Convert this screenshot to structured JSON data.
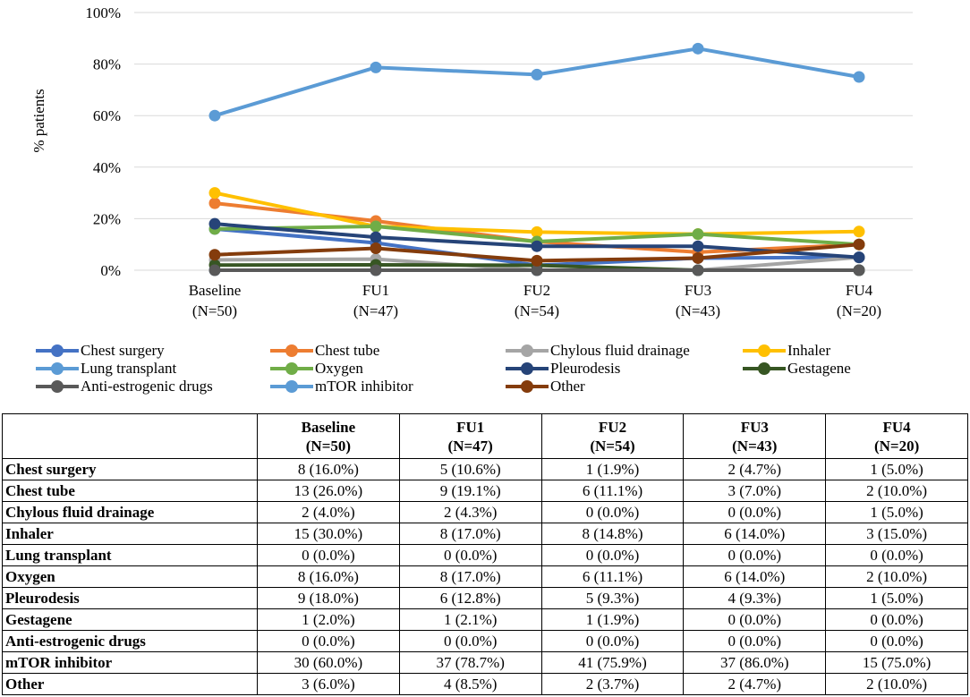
{
  "chart_data": {
    "type": "line",
    "title": "",
    "xlabel": "",
    "ylabel": "% patients",
    "ylim": [
      0,
      100
    ],
    "yticks": [
      0,
      20,
      40,
      60,
      80,
      100
    ],
    "ytick_labels": [
      "0%",
      "20%",
      "40%",
      "60%",
      "80%",
      "100%"
    ],
    "grid": true,
    "legend_position": "bottom",
    "categories": [
      {
        "name": "Baseline",
        "n": "(N=50)"
      },
      {
        "name": "FU1",
        "n": "(N=47)"
      },
      {
        "name": "FU2",
        "n": "(N=54)"
      },
      {
        "name": "FU3",
        "n": "(N=43)"
      },
      {
        "name": "FU4",
        "n": "(N=20)"
      }
    ],
    "series": [
      {
        "name": "Chest surgery",
        "color": "#4472C4",
        "values": [
          16.0,
          10.6,
          1.9,
          4.7,
          5.0
        ]
      },
      {
        "name": "Chest tube",
        "color": "#ED7D31",
        "values": [
          26.0,
          19.1,
          11.1,
          7.0,
          10.0
        ]
      },
      {
        "name": "Chylous fluid drainage",
        "color": "#A5A5A5",
        "values": [
          4.0,
          4.3,
          0.0,
          0.0,
          5.0
        ]
      },
      {
        "name": "Inhaler",
        "color": "#FFC000",
        "values": [
          30.0,
          17.0,
          14.8,
          14.0,
          15.0
        ]
      },
      {
        "name": "Lung transplant",
        "color": "#5B9BD5",
        "values": [
          0.0,
          0.0,
          0.0,
          0.0,
          0.0
        ]
      },
      {
        "name": "Oxygen",
        "color": "#70AD47",
        "values": [
          16.0,
          17.0,
          11.1,
          14.0,
          10.0
        ]
      },
      {
        "name": "Pleurodesis",
        "color": "#264478",
        "values": [
          18.0,
          12.8,
          9.3,
          9.3,
          5.0
        ]
      },
      {
        "name": "Gestagene",
        "color": "#375623",
        "values": [
          2.0,
          2.1,
          1.9,
          0.0,
          0.0
        ]
      },
      {
        "name": "Anti-estrogenic drugs",
        "color": "#595959",
        "values": [
          0.0,
          0.0,
          0.0,
          0.0,
          0.0
        ]
      },
      {
        "name": "mTOR inhibitor",
        "color": "#5B9BD5",
        "values": [
          60.0,
          78.7,
          75.9,
          86.0,
          75.0
        ]
      },
      {
        "name": "Other",
        "color": "#843C0C",
        "values": [
          6.0,
          8.5,
          3.7,
          4.7,
          10.0
        ]
      }
    ]
  },
  "table": {
    "headers": [
      {
        "name": "Baseline",
        "n": "(N=50)"
      },
      {
        "name": "FU1",
        "n": "(N=47)"
      },
      {
        "name": "FU2",
        "n": "(N=54)"
      },
      {
        "name": "FU3",
        "n": "(N=43)"
      },
      {
        "name": "FU4",
        "n": "(N=20)"
      }
    ],
    "rows": [
      {
        "label": "Chest surgery",
        "cells": [
          "8 (16.0%)",
          "5 (10.6%)",
          "1 (1.9%)",
          "2 (4.7%)",
          "1 (5.0%)"
        ]
      },
      {
        "label": "Chest tube",
        "cells": [
          "13 (26.0%)",
          "9 (19.1%)",
          "6 (11.1%)",
          "3 (7.0%)",
          "2 (10.0%)"
        ]
      },
      {
        "label": "Chylous fluid drainage",
        "cells": [
          "2 (4.0%)",
          "2 (4.3%)",
          "0 (0.0%)",
          "0 (0.0%)",
          "1 (5.0%)"
        ]
      },
      {
        "label": "Inhaler",
        "cells": [
          "15 (30.0%)",
          "8 (17.0%)",
          "8 (14.8%)",
          "6 (14.0%)",
          "3 (15.0%)"
        ]
      },
      {
        "label": "Lung transplant",
        "cells": [
          "0 (0.0%)",
          "0 (0.0%)",
          "0 (0.0%)",
          "0 (0.0%)",
          "0 (0.0%)"
        ]
      },
      {
        "label": "Oxygen",
        "cells": [
          "8 (16.0%)",
          "8 (17.0%)",
          "6 (11.1%)",
          "6 (14.0%)",
          "2 (10.0%)"
        ]
      },
      {
        "label": "Pleurodesis",
        "cells": [
          "9 (18.0%)",
          "6 (12.8%)",
          "5 (9.3%)",
          "4 (9.3%)",
          "1 (5.0%)"
        ]
      },
      {
        "label": "Gestagene",
        "cells": [
          "1 (2.0%)",
          "1 (2.1%)",
          "1 (1.9%)",
          "0 (0.0%)",
          "0 (0.0%)"
        ]
      },
      {
        "label": "Anti-estrogenic drugs",
        "cells": [
          "0 (0.0%)",
          "0 (0.0%)",
          "0 (0.0%)",
          "0 (0.0%)",
          "0 (0.0%)"
        ]
      },
      {
        "label": "mTOR inhibitor",
        "cells": [
          "30 (60.0%)",
          "37 (78.7%)",
          "41 (75.9%)",
          "37 (86.0%)",
          "15 (75.0%)"
        ]
      },
      {
        "label": "Other",
        "cells": [
          "3 (6.0%)",
          "4 (8.5%)",
          "2 (3.7%)",
          "2 (4.7%)",
          "2 (10.0%)"
        ]
      }
    ]
  }
}
